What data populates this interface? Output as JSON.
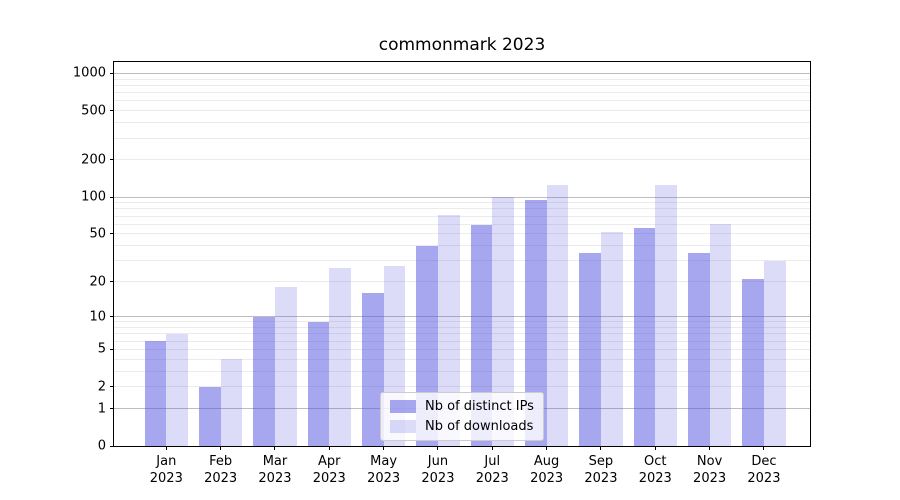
{
  "chart_data": {
    "type": "bar",
    "title": "commonmark 2023",
    "categories": [
      "Jan",
      "Feb",
      "Mar",
      "Apr",
      "May",
      "Jun",
      "Jul",
      "Aug",
      "Sep",
      "Oct",
      "Nov",
      "Dec"
    ],
    "x_tick_second_line": "2023",
    "series": [
      {
        "name": "Nb of distinct IPs",
        "color": "rgba(80,80,224,0.5)",
        "values": [
          6,
          2,
          10,
          9,
          16,
          40,
          59,
          95,
          35,
          56,
          35,
          21
        ]
      },
      {
        "name": "Nb of downloads",
        "color": "rgba(80,80,224,0.2)",
        "values": [
          7,
          4,
          18,
          26,
          27,
          72,
          100,
          125,
          52,
          125,
          60,
          30
        ]
      }
    ],
    "y_axis": {
      "scale": "log1p",
      "ylim": [
        0,
        1234
      ],
      "tick_labels": [
        "0",
        "1",
        "2",
        "5",
        "10",
        "20",
        "50",
        "100",
        "200",
        "500",
        "1000"
      ],
      "ticks": [
        0,
        1,
        2,
        5,
        10,
        20,
        50,
        100,
        200,
        500,
        1000
      ],
      "major_gridlines": [
        1,
        10,
        100,
        1000
      ],
      "minor_gridlines": [
        2,
        3,
        4,
        5,
        6,
        7,
        8,
        9,
        20,
        30,
        40,
        50,
        60,
        70,
        80,
        90,
        200,
        300,
        400,
        500,
        600,
        700,
        800,
        900
      ]
    },
    "legend": {
      "position": "lower center",
      "entries": [
        "Nb of distinct IPs",
        "Nb of downloads"
      ]
    },
    "colors": {
      "bar_distinct_ips": "rgba(80,80,224,0.5)",
      "bar_downloads": "rgba(80,80,224,0.2)",
      "major_grid": "#bdbdbd",
      "minor_grid": "#ebebeb",
      "spine": "#000000",
      "legend_border": "#cccccc",
      "legend_background": "rgba(255,255,255,0.8)"
    }
  }
}
